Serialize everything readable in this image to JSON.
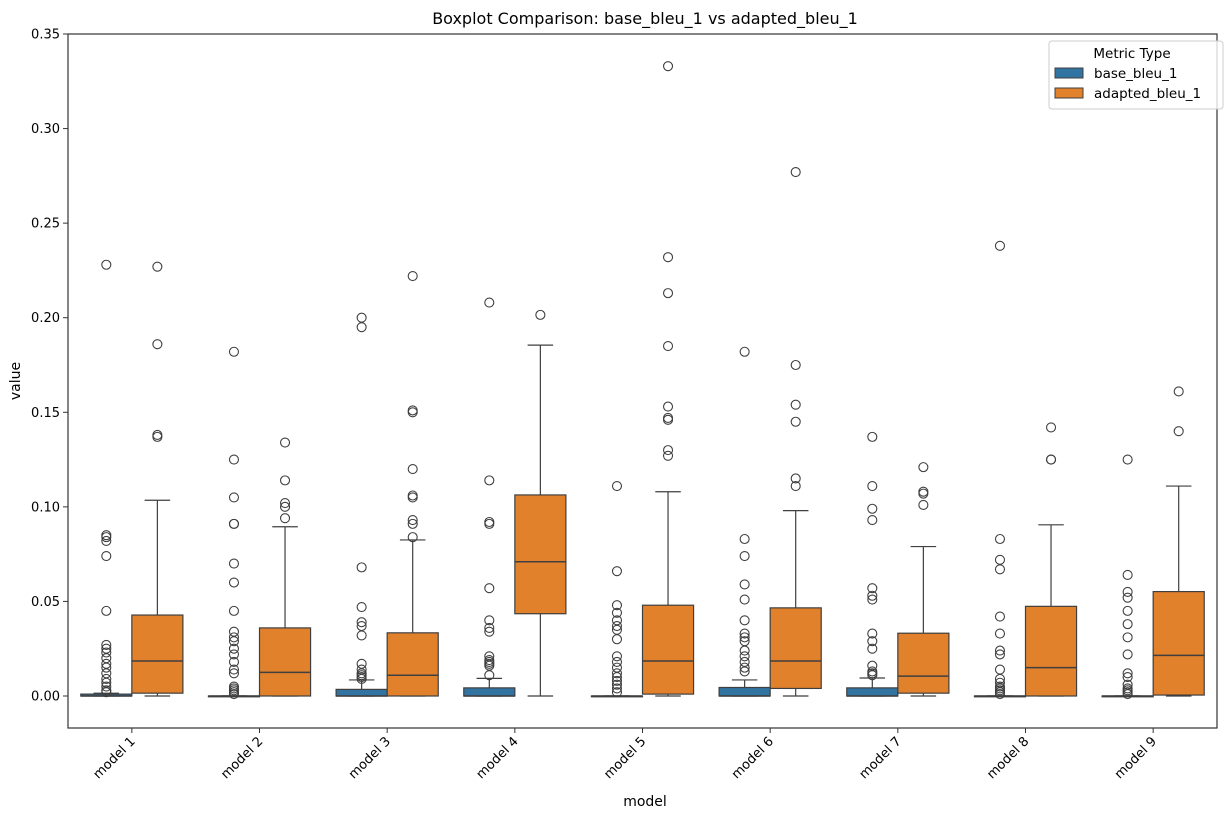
{
  "chart_data": {
    "type": "boxplot",
    "title": "Boxplot Comparison: base_bleu_1 vs adapted_bleu_1",
    "xlabel": "model",
    "ylabel": "value",
    "ylim": [
      -0.017,
      0.35
    ],
    "yticks": [
      0.0,
      0.05,
      0.1,
      0.15,
      0.2,
      0.25,
      0.3,
      0.35
    ],
    "ytick_labels": [
      "0.00",
      "0.05",
      "0.10",
      "0.15",
      "0.20",
      "0.25",
      "0.30",
      "0.35"
    ],
    "grid": false,
    "categories": [
      "model 1",
      "model 2",
      "model 3",
      "model 4",
      "model 5",
      "model 6",
      "model 7",
      "model 8",
      "model 9"
    ],
    "legend": {
      "title": "Metric Type",
      "placement": "top-right",
      "entries": [
        "base_bleu_1",
        "adapted_bleu_1"
      ]
    },
    "series": [
      {
        "name": "base_bleu_1",
        "color": "#3274a1",
        "boxes": [
          {
            "q1": 0.0,
            "median": 0.0,
            "q3": 0.001,
            "whislo": 0.0,
            "whishi": 0.0015,
            "fliers": [
              0.228,
              0.085,
              0.084,
              0.082,
              0.074,
              0.045,
              0.027,
              0.025,
              0.023,
              0.02,
              0.017,
              0.015,
              0.012,
              0.009,
              0.007,
              0.005,
              0.003,
              0.002
            ]
          },
          {
            "q1": 0.0,
            "median": 0.0,
            "q3": 0.0,
            "whislo": 0.0,
            "whishi": 0.0,
            "fliers": [
              0.182,
              0.125,
              0.105,
              0.091,
              0.091,
              0.07,
              0.06,
              0.045,
              0.034,
              0.031,
              0.029,
              0.025,
              0.022,
              0.018,
              0.014,
              0.012,
              0.005,
              0.004,
              0.003,
              0.002,
              0.001
            ]
          },
          {
            "q1": 0.0,
            "median": 0.0,
            "q3": 0.0035,
            "whislo": 0.0,
            "whishi": 0.0085,
            "fliers": [
              0.2,
              0.195,
              0.068,
              0.047,
              0.039,
              0.037,
              0.032,
              0.017,
              0.014,
              0.012,
              0.011,
              0.01,
              0.009
            ]
          },
          {
            "q1": 0.0,
            "median": 0.0,
            "q3": 0.0043,
            "whislo": 0.0,
            "whishi": 0.0093,
            "fliers": [
              0.208,
              0.114,
              0.092,
              0.091,
              0.057,
              0.04,
              0.036,
              0.034,
              0.021,
              0.019,
              0.018,
              0.017,
              0.016,
              0.011
            ]
          },
          {
            "q1": 0.0,
            "median": 0.0,
            "q3": 0.0,
            "whislo": 0.0,
            "whishi": 0.0,
            "fliers": [
              0.111,
              0.066,
              0.048,
              0.044,
              0.04,
              0.037,
              0.035,
              0.03,
              0.021,
              0.018,
              0.015,
              0.012,
              0.01,
              0.008,
              0.006,
              0.004,
              0.002
            ]
          },
          {
            "q1": 0.0,
            "median": 0.0,
            "q3": 0.0045,
            "whislo": 0.0,
            "whishi": 0.0085,
            "fliers": [
              0.182,
              0.083,
              0.074,
              0.059,
              0.051,
              0.04,
              0.033,
              0.031,
              0.029,
              0.024,
              0.021,
              0.018,
              0.015,
              0.013
            ]
          },
          {
            "q1": 0.0,
            "median": 0.0,
            "q3": 0.0043,
            "whislo": 0.0,
            "whishi": 0.0095,
            "fliers": [
              0.137,
              0.111,
              0.099,
              0.093,
              0.057,
              0.053,
              0.051,
              0.033,
              0.029,
              0.025,
              0.016,
              0.013,
              0.012,
              0.011
            ]
          },
          {
            "q1": 0.0,
            "median": 0.0,
            "q3": 0.0,
            "whislo": 0.0,
            "whishi": 0.0,
            "fliers": [
              0.238,
              0.083,
              0.072,
              0.067,
              0.042,
              0.033,
              0.024,
              0.022,
              0.014,
              0.009,
              0.007,
              0.005,
              0.004,
              0.003,
              0.002,
              0.001
            ]
          },
          {
            "q1": 0.0,
            "median": 0.0,
            "q3": 0.0,
            "whislo": 0.0,
            "whishi": 0.0,
            "fliers": [
              0.125,
              0.064,
              0.055,
              0.052,
              0.045,
              0.038,
              0.031,
              0.022,
              0.012,
              0.01,
              0.006,
              0.004,
              0.003,
              0.002,
              0.001
            ]
          }
        ]
      },
      {
        "name": "adapted_bleu_1",
        "color": "#e1812c",
        "boxes": [
          {
            "q1": 0.0015,
            "median": 0.0185,
            "q3": 0.0428,
            "whislo": 0.0,
            "whishi": 0.1035,
            "fliers": [
              0.227,
              0.186,
              0.138,
              0.137
            ]
          },
          {
            "q1": 0.0,
            "median": 0.0125,
            "q3": 0.036,
            "whislo": 0.0,
            "whishi": 0.0895,
            "fliers": [
              0.134,
              0.114,
              0.102,
              0.1,
              0.094
            ]
          },
          {
            "q1": 0.0,
            "median": 0.011,
            "q3": 0.0334,
            "whislo": 0.0,
            "whishi": 0.0825,
            "fliers": [
              0.222,
              0.151,
              0.15,
              0.12,
              0.106,
              0.105,
              0.093,
              0.091,
              0.084
            ]
          },
          {
            "q1": 0.0435,
            "median": 0.071,
            "q3": 0.1063,
            "whislo": 0.0,
            "whishi": 0.1855,
            "fliers": [
              0.2015
            ]
          },
          {
            "q1": 0.001,
            "median": 0.0185,
            "q3": 0.048,
            "whislo": 0.0,
            "whishi": 0.108,
            "fliers": [
              0.333,
              0.232,
              0.213,
              0.185,
              0.153,
              0.147,
              0.146,
              0.13,
              0.127
            ]
          },
          {
            "q1": 0.004,
            "median": 0.0185,
            "q3": 0.0466,
            "whislo": 0.0,
            "whishi": 0.098,
            "fliers": [
              0.277,
              0.175,
              0.154,
              0.145,
              0.115,
              0.111
            ]
          },
          {
            "q1": 0.0015,
            "median": 0.0105,
            "q3": 0.0332,
            "whislo": 0.0,
            "whishi": 0.079,
            "fliers": [
              0.121,
              0.108,
              0.107,
              0.101
            ]
          },
          {
            "q1": 0.0,
            "median": 0.015,
            "q3": 0.0474,
            "whislo": 0.0,
            "whishi": 0.0905,
            "fliers": [
              0.142,
              0.125,
              0.125
            ]
          },
          {
            "q1": 0.0005,
            "median": 0.0215,
            "q3": 0.0552,
            "whislo": 0.0,
            "whishi": 0.111,
            "fliers": [
              0.161,
              0.14
            ]
          }
        ]
      }
    ]
  }
}
